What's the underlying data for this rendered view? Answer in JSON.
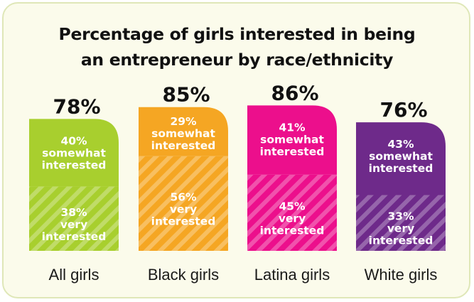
{
  "chart_data": {
    "type": "bar",
    "stacked": true,
    "title": "Percentage of girls interested in being an entrepreneur by race/ethnicity",
    "title_lines": [
      "Percentage of girls interested in being",
      "an entrepreneur by race/ethnicity"
    ],
    "categories": [
      "All girls",
      "Black girls",
      "Latina girls",
      "White girls"
    ],
    "totals": [
      78,
      85,
      86,
      76
    ],
    "total_labels": [
      "78%",
      "85%",
      "86%",
      "76%"
    ],
    "colors": [
      "#a8cf2e",
      "#f5a623",
      "#ec0f8c",
      "#6e2a8a"
    ],
    "series": [
      {
        "name": "very interested",
        "values": [
          38,
          56,
          45,
          33
        ],
        "labels": [
          [
            "38%",
            "very",
            "interested"
          ],
          [
            "56%",
            "very",
            "interested"
          ],
          [
            "45%",
            "very",
            "interested"
          ],
          [
            "33%",
            "very",
            "interested"
          ]
        ],
        "pattern": "diagonal-stripes"
      },
      {
        "name": "somewhat interested",
        "values": [
          40,
          29,
          41,
          43
        ],
        "labels": [
          [
            "40%",
            "somewhat",
            "interested"
          ],
          [
            "29%",
            "somewhat",
            "interested"
          ],
          [
            "41%",
            "somewhat",
            "interested"
          ],
          [
            "43%",
            "somewhat",
            "interested"
          ]
        ],
        "pattern": "solid"
      }
    ]
  }
}
